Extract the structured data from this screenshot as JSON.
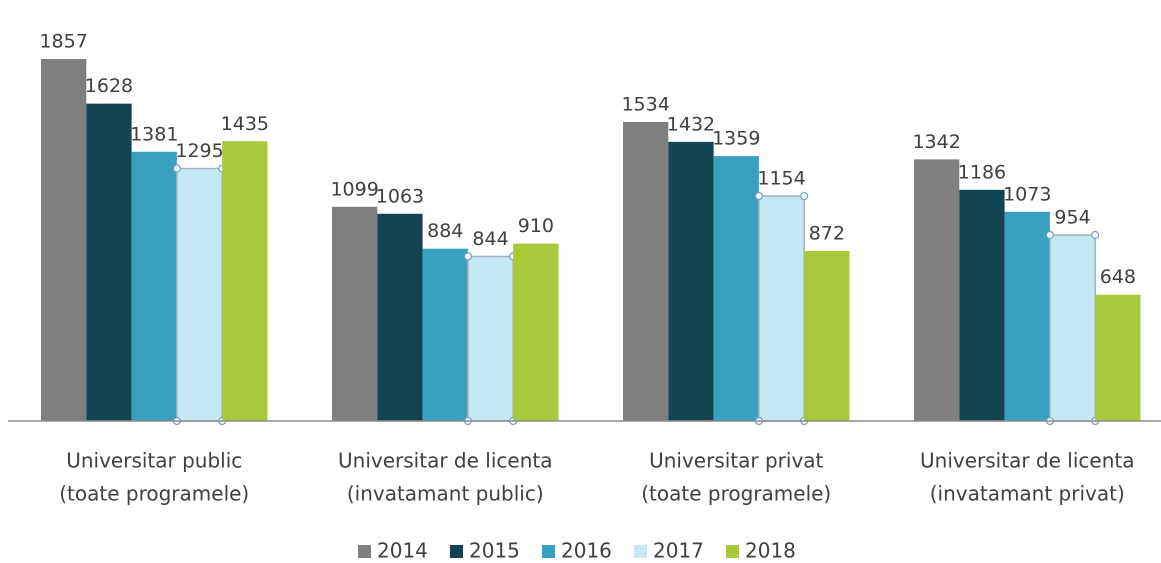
{
  "chart_data": {
    "type": "bar",
    "categories": [
      [
        "Universitar public",
        "(toate programele)"
      ],
      [
        "Universitar de licenta",
        "(invatamant public)"
      ],
      [
        "Universitar privat",
        "(toate programele)"
      ],
      [
        "Universitar de licenta",
        "(invatamant privat)"
      ]
    ],
    "series": [
      {
        "name": "2014",
        "color": "#7f7f7f",
        "values": [
          1857,
          1099,
          1534,
          1342
        ]
      },
      {
        "name": "2015",
        "color": "#134452",
        "values": [
          1628,
          1063,
          1432,
          1186
        ]
      },
      {
        "name": "2016",
        "color": "#3aa0c0",
        "values": [
          1381,
          884,
          1359,
          1073
        ]
      },
      {
        "name": "2017",
        "color": "#c5e8f3",
        "values": [
          1295,
          844,
          1154,
          954
        ]
      },
      {
        "name": "2018",
        "color": "#a8c93a",
        "values": [
          1435,
          910,
          872,
          648
        ]
      }
    ],
    "legend": "bottom"
  }
}
